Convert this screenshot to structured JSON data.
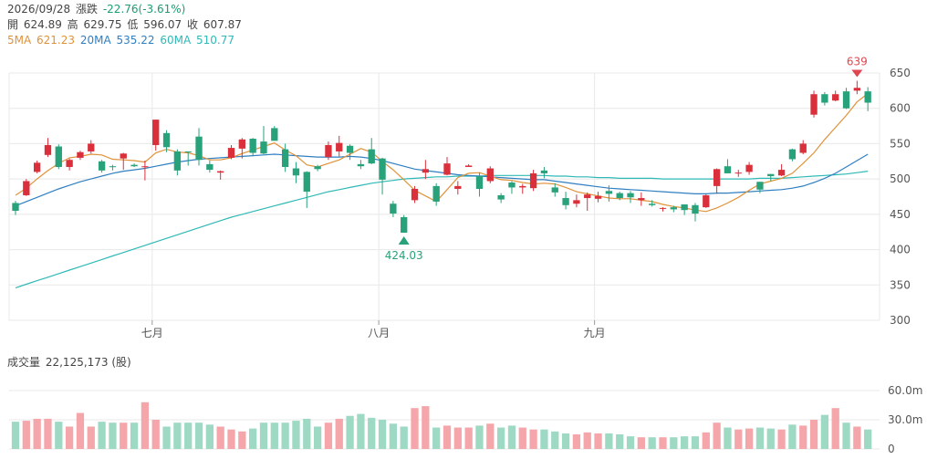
{
  "header": {
    "date": "2026/09/28",
    "change_label": "漲跌",
    "change_value": "-22.76(-3.61%)",
    "open_label": "開",
    "open": "624.89",
    "high_label": "高",
    "high": "629.75",
    "low_label": "低",
    "low": "596.07",
    "close_label": "收",
    "close": "607.87"
  },
  "ma": {
    "ma5_label": "5MA",
    "ma5": "621.23",
    "ma20_label": "20MA",
    "ma20": "535.22",
    "ma60_label": "60MA",
    "ma60": "510.77"
  },
  "volume": {
    "title": "成交量",
    "value": "22,125,173 (股)"
  },
  "colors": {
    "up": "#e0464f",
    "up_fill": "#d9303c",
    "down": "#27a27a",
    "ma5": "#e0923a",
    "ma20": "#2f7fc1",
    "ma60": "#2fb9b6",
    "vol_up": "#f4a6aa",
    "vol_down": "#9ed9c4",
    "grid": "#e8e8e8"
  },
  "chart_data": {
    "type": "candlestick",
    "y_ticks": [
      "650",
      "600",
      "550",
      "500",
      "450",
      "400",
      "350",
      "300"
    ],
    "ylim": [
      300,
      650
    ],
    "x_labels": [
      {
        "label": "七月",
        "index": 13
      },
      {
        "label": "八月",
        "index": 34
      },
      {
        "label": "九月",
        "index": 54
      }
    ],
    "high_marker": "639",
    "low_marker": "424.03",
    "candles": [
      [
        466,
        455,
        469,
        449
      ],
      [
        477,
        497,
        500,
        476
      ],
      [
        510,
        523,
        526,
        508
      ],
      [
        534,
        548,
        558,
        531
      ],
      [
        546,
        517,
        549,
        514
      ],
      [
        517,
        527,
        529,
        512
      ],
      [
        530,
        538,
        540,
        527
      ],
      [
        539,
        550,
        555,
        536
      ],
      [
        525,
        512,
        527,
        509
      ],
      [
        518,
        517,
        520,
        512
      ],
      [
        529,
        536,
        537,
        513
      ],
      [
        520,
        518,
        522,
        517
      ],
      [
        517,
        518,
        526,
        498
      ],
      [
        548,
        584,
        584,
        540
      ],
      [
        565,
        545,
        569,
        538
      ],
      [
        539,
        512,
        542,
        505
      ],
      [
        539,
        538,
        539,
        519
      ],
      [
        560,
        527,
        572,
        519
      ],
      [
        521,
        513,
        526,
        509
      ],
      [
        509,
        511,
        512,
        499
      ],
      [
        530,
        544,
        548,
        528
      ],
      [
        543,
        556,
        558,
        529
      ],
      [
        557,
        537,
        558,
        533
      ],
      [
        553,
        536,
        575,
        535
      ],
      [
        572,
        554,
        575,
        568
      ],
      [
        542,
        517,
        550,
        510
      ],
      [
        515,
        505,
        524,
        494
      ],
      [
        510,
        482,
        511,
        459
      ],
      [
        518,
        514,
        520,
        511
      ],
      [
        531,
        548,
        553,
        527
      ],
      [
        539,
        551,
        561,
        532
      ],
      [
        547,
        537,
        549,
        527
      ],
      [
        521,
        518,
        527,
        514
      ],
      [
        542,
        522,
        558,
        521
      ],
      [
        529,
        499,
        530,
        478
      ],
      [
        465,
        451,
        469,
        446
      ],
      [
        446,
        424,
        449,
        424
      ],
      [
        470,
        486,
        490,
        466
      ],
      [
        509,
        514,
        527,
        500
      ],
      [
        490,
        468,
        494,
        462
      ],
      [
        506,
        522,
        531,
        505
      ],
      [
        486,
        490,
        497,
        478
      ],
      [
        517,
        519,
        521,
        518
      ],
      [
        504,
        486,
        509,
        475
      ],
      [
        497,
        515,
        518,
        494
      ],
      [
        477,
        471,
        480,
        466
      ],
      [
        495,
        488,
        497,
        479
      ],
      [
        488,
        490,
        493,
        479
      ],
      [
        487,
        508,
        513,
        483
      ],
      [
        512,
        508,
        517,
        501
      ],
      [
        488,
        481,
        494,
        475
      ],
      [
        473,
        463,
        482,
        457
      ],
      [
        465,
        470,
        478,
        460
      ],
      [
        473,
        478,
        481,
        455
      ],
      [
        472,
        476,
        482,
        467
      ],
      [
        483,
        479,
        491,
        468
      ],
      [
        480,
        473,
        482,
        470
      ],
      [
        480,
        474,
        483,
        466
      ],
      [
        470,
        473,
        481,
        462
      ],
      [
        465,
        463,
        470,
        461
      ],
      [
        458,
        459,
        460,
        454
      ],
      [
        460,
        457,
        462,
        453
      ],
      [
        464,
        456,
        464,
        449
      ],
      [
        463,
        451,
        466,
        440
      ],
      [
        460,
        477,
        478,
        459
      ],
      [
        490,
        514,
        515,
        479
      ],
      [
        518,
        508,
        528,
        508
      ],
      [
        509,
        509,
        513,
        503
      ],
      [
        510,
        520,
        524,
        506
      ],
      [
        496,
        485,
        496,
        480
      ],
      [
        507,
        504,
        507,
        497
      ],
      [
        505,
        513,
        521,
        504
      ],
      [
        542,
        528,
        543,
        525
      ],
      [
        537,
        550,
        555,
        535
      ],
      [
        591,
        620,
        625,
        587
      ],
      [
        620,
        608,
        623,
        604
      ],
      [
        611,
        620,
        625,
        610
      ],
      [
        624,
        600,
        629,
        599
      ],
      [
        625,
        629,
        639,
        620
      ],
      [
        624,
        608,
        630,
        596
      ]
    ],
    "ma5": [
      477,
      487,
      500,
      512,
      522,
      530,
      532,
      535,
      534,
      528,
      527,
      526,
      524,
      537,
      542,
      538,
      537,
      533,
      527,
      527,
      530,
      536,
      541,
      546,
      551,
      541,
      533,
      520,
      517,
      522,
      527,
      535,
      543,
      538,
      525,
      513,
      499,
      484,
      476,
      468,
      485,
      502,
      508,
      509,
      504,
      499,
      498,
      495,
      493,
      494,
      493,
      488,
      482,
      479,
      476,
      473,
      472,
      472,
      470,
      468,
      464,
      461,
      459,
      456,
      454,
      459,
      466,
      474,
      484,
      493,
      497,
      501,
      508,
      522,
      537,
      556,
      573,
      590,
      609,
      621
    ],
    "ma20": [
      462,
      468,
      474,
      480,
      486,
      491,
      496,
      500,
      504,
      508,
      511,
      513,
      515,
      518,
      521,
      524,
      526,
      528,
      529,
      530,
      531,
      532,
      533,
      534,
      535,
      534,
      533,
      532,
      531,
      531,
      531,
      532,
      531,
      529,
      526,
      522,
      518,
      514,
      512,
      510,
      508,
      506,
      505,
      504,
      503,
      502,
      501,
      500,
      499,
      499,
      497,
      495,
      493,
      491,
      489,
      487,
      486,
      485,
      484,
      483,
      482,
      481,
      480,
      479,
      479,
      480,
      480,
      481,
      482,
      483,
      484,
      485,
      487,
      490,
      495,
      501,
      508,
      517,
      526,
      535
    ],
    "ma60": [
      346,
      351,
      356,
      361,
      366,
      371,
      376,
      381,
      386,
      391,
      396,
      401,
      406,
      411,
      416,
      421,
      426,
      431,
      436,
      441,
      446,
      450,
      454,
      458,
      462,
      466,
      470,
      474,
      478,
      482,
      485,
      488,
      491,
      494,
      496,
      498,
      500,
      501,
      502,
      503,
      503,
      504,
      504,
      504,
      505,
      505,
      505,
      505,
      505,
      505,
      504,
      504,
      503,
      503,
      502,
      502,
      501,
      501,
      501,
      501,
      500,
      500,
      500,
      500,
      500,
      500,
      500,
      500,
      500,
      501,
      501,
      501,
      502,
      503,
      504,
      505,
      506,
      507,
      509,
      511
    ],
    "volume_ticks": [
      "60.0m",
      "30.0m",
      "0"
    ],
    "volume_m": [
      28,
      29,
      31,
      31,
      28,
      23,
      37,
      23,
      28,
      27,
      27,
      27,
      48,
      30,
      23,
      27,
      27,
      27,
      25,
      23,
      20,
      18,
      21,
      27,
      27,
      27,
      29,
      31,
      23,
      27,
      31,
      34,
      36,
      32,
      30,
      26,
      23,
      42,
      44,
      22,
      24,
      22,
      22,
      24,
      26,
      22,
      24,
      22,
      20,
      20,
      18,
      16,
      15,
      17,
      16,
      16,
      15,
      13,
      12,
      12,
      12,
      12,
      13,
      13,
      17,
      27,
      22,
      20,
      21,
      22,
      21,
      20,
      25,
      24,
      30,
      35,
      42,
      27,
      23,
      20
    ]
  }
}
